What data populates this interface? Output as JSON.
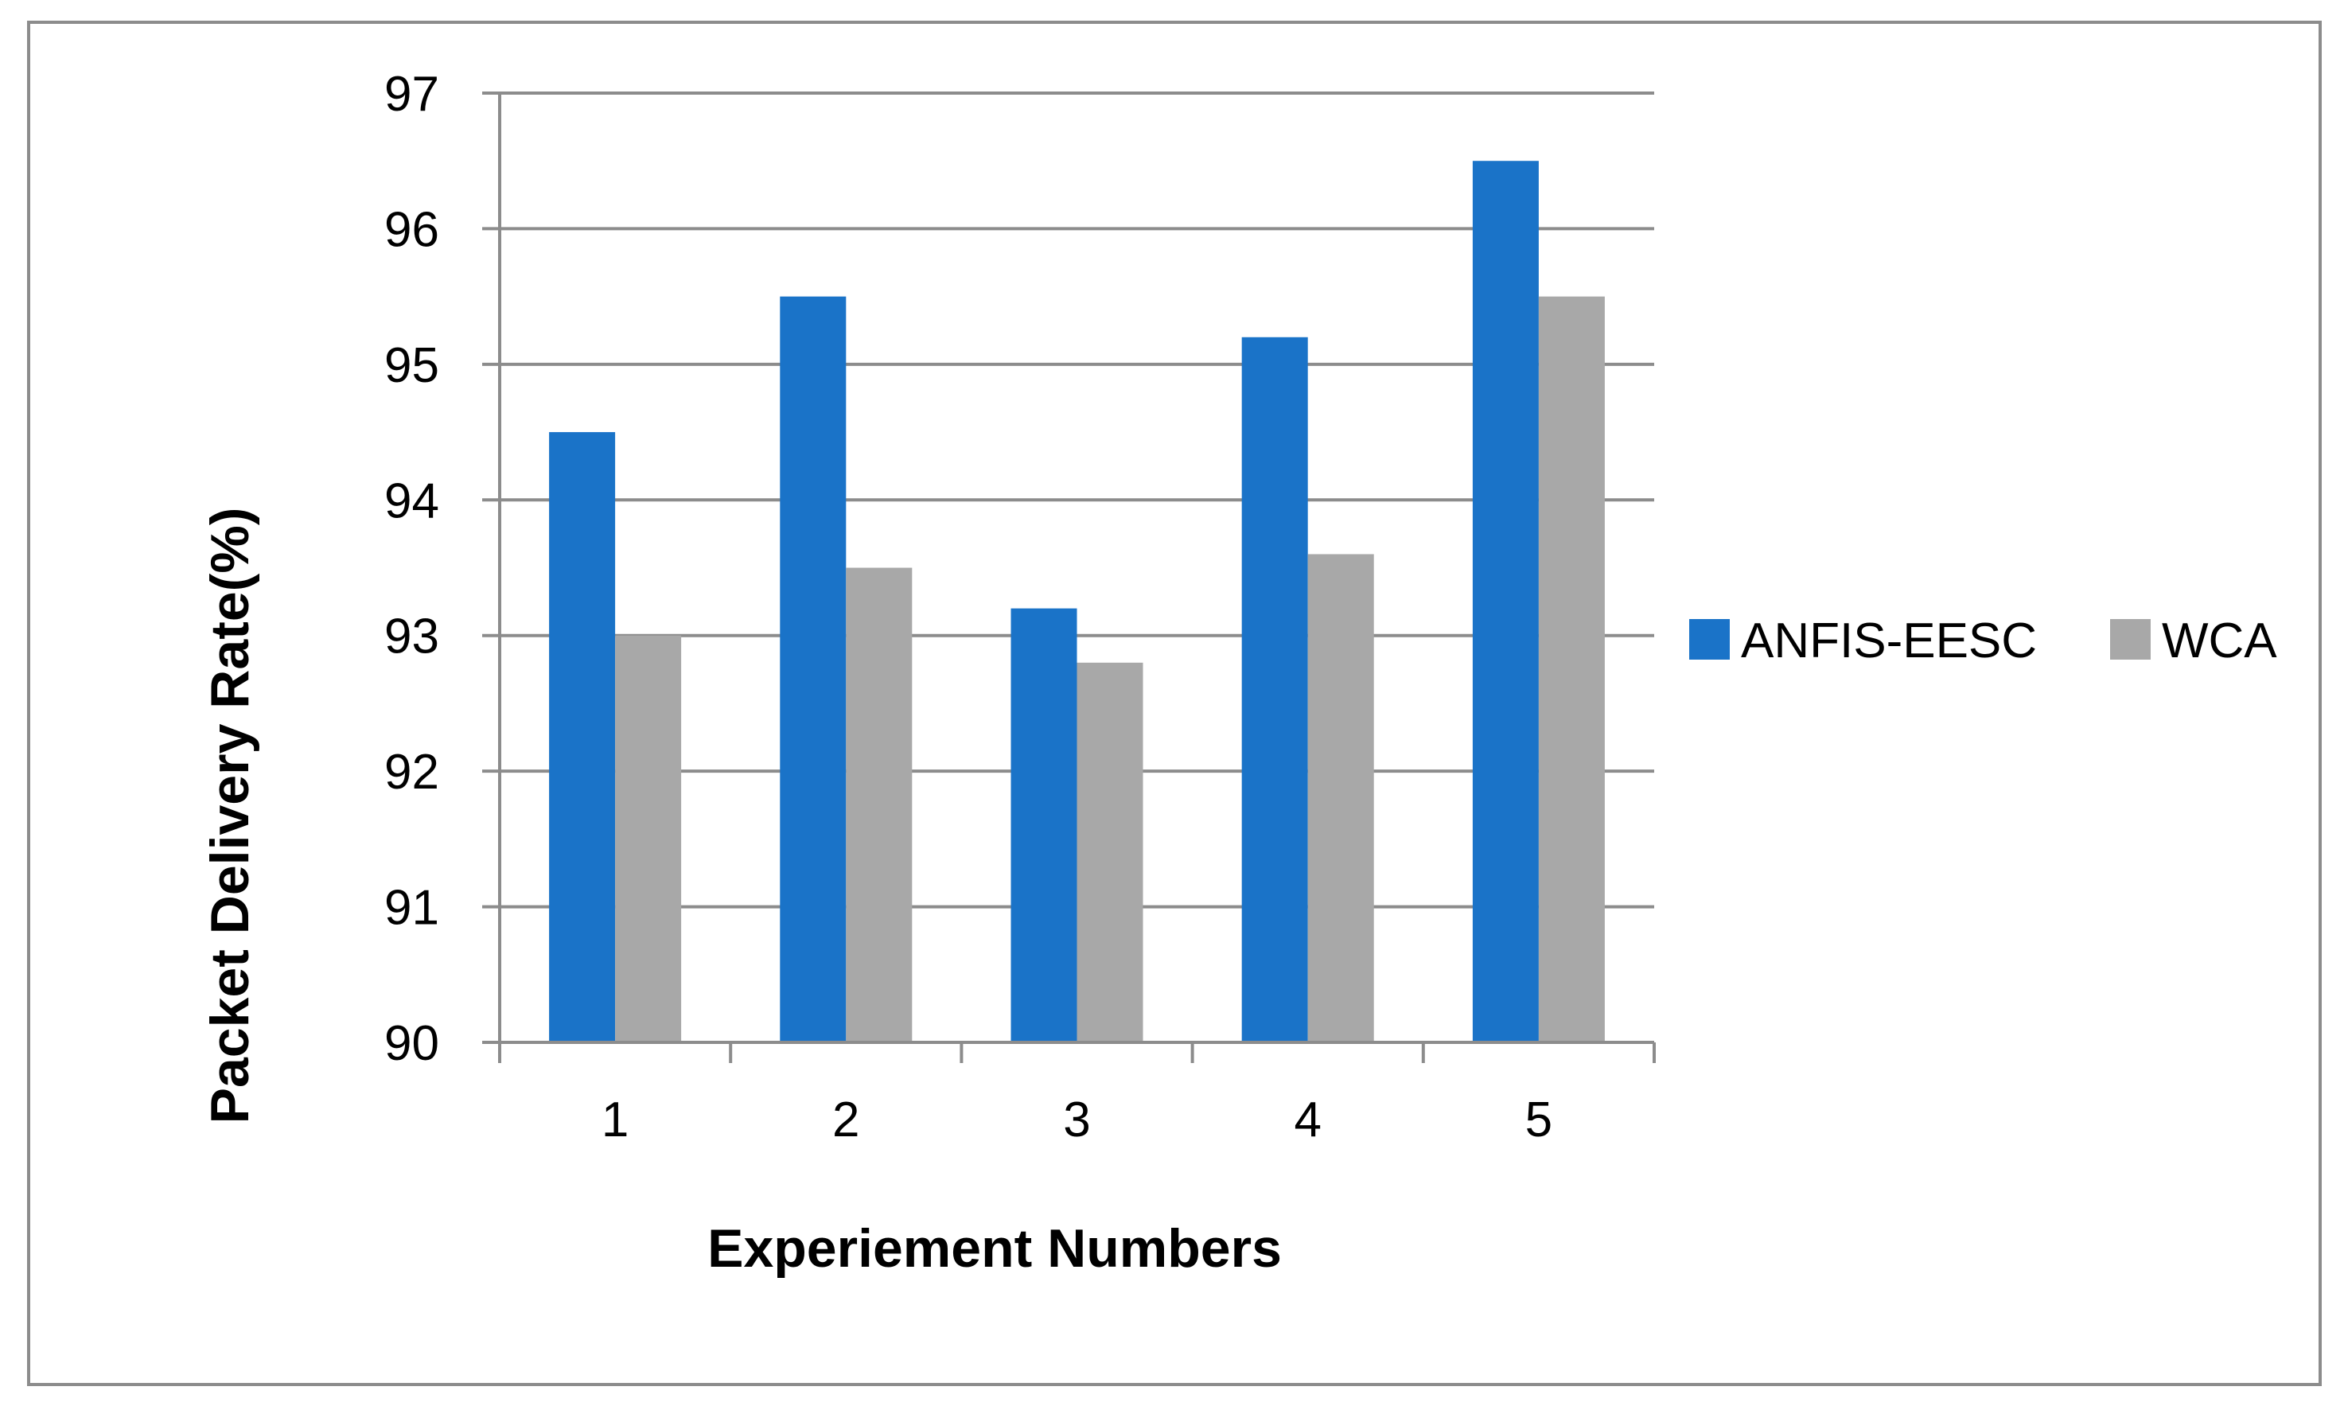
{
  "chart_data": {
    "type": "bar",
    "title": "",
    "xlabel": "Experiement Numbers",
    "ylabel": "Packet Delivery Rate(%)",
    "categories": [
      "1",
      "2",
      "3",
      "4",
      "5"
    ],
    "series": [
      {
        "name": "ANFIS-EESC",
        "color": "#1a73c8",
        "values": [
          94.5,
          95.5,
          93.2,
          95.2,
          96.5
        ]
      },
      {
        "name": "WCA",
        "color": "#a8a8a8",
        "values": [
          93.0,
          93.5,
          92.8,
          93.6,
          95.5
        ]
      }
    ],
    "ylim": [
      90,
      97
    ],
    "yticks": [
      "90",
      "91",
      "92",
      "93",
      "94",
      "95",
      "96",
      "97"
    ],
    "grid": true,
    "legend_position": "right"
  }
}
